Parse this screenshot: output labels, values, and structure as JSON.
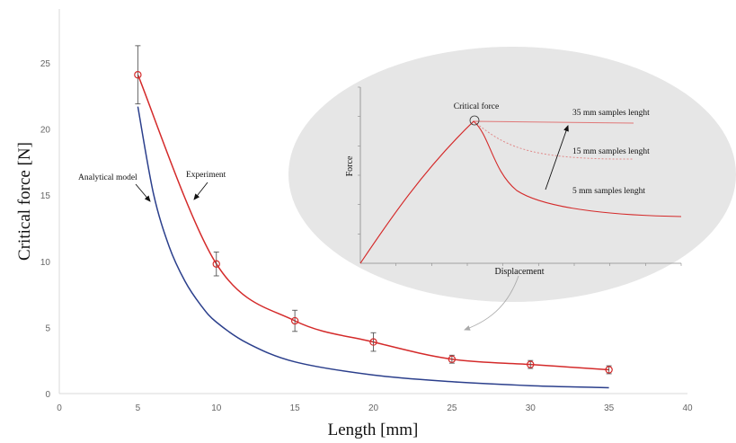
{
  "chart_data": {
    "type": "line",
    "xlabel": "Length [mm]",
    "ylabel": "Critical force [N]",
    "xlim": [
      0,
      40
    ],
    "ylim": [
      0,
      25
    ],
    "xticks": [
      0,
      5,
      10,
      15,
      20,
      25,
      30,
      35,
      40
    ],
    "yticks": [
      0,
      5,
      10,
      15,
      20,
      25
    ],
    "grid": false,
    "series": [
      {
        "name": "Experiment",
        "color": "#d42a2a",
        "marker": "circle",
        "x": [
          5,
          10,
          15,
          20,
          25,
          30,
          35
        ],
        "y": [
          24.1,
          9.8,
          5.5,
          3.9,
          2.6,
          2.2,
          1.8
        ],
        "error": [
          2.2,
          0.9,
          0.8,
          0.7,
          0.3,
          0.3,
          0.3
        ]
      },
      {
        "name": "Analytical model",
        "color": "#2b3f8c",
        "x": [
          5,
          6,
          7,
          8,
          9,
          10,
          12,
          15,
          20,
          25,
          30,
          35
        ],
        "y": [
          21.7,
          15.1,
          11.1,
          8.5,
          6.7,
          5.4,
          3.8,
          2.4,
          1.4,
          0.9,
          0.6,
          0.44
        ]
      }
    ],
    "annotations": [
      {
        "text": "Analytical model",
        "target": [
          6,
          14.5
        ]
      },
      {
        "text": "Experiment",
        "target": [
          8.5,
          15.5
        ]
      }
    ],
    "inset": {
      "type": "line",
      "xlabel": "Displacement",
      "ylabel": "Force",
      "peak_label": "Critical force",
      "curves": [
        {
          "label": "35 mm samples lenght",
          "color": "#e07777"
        },
        {
          "label": "15 mm samples lenght",
          "color": "#e08a8a"
        },
        {
          "label": "5 mm samples lenght",
          "color": "#d42a2a"
        }
      ]
    }
  }
}
